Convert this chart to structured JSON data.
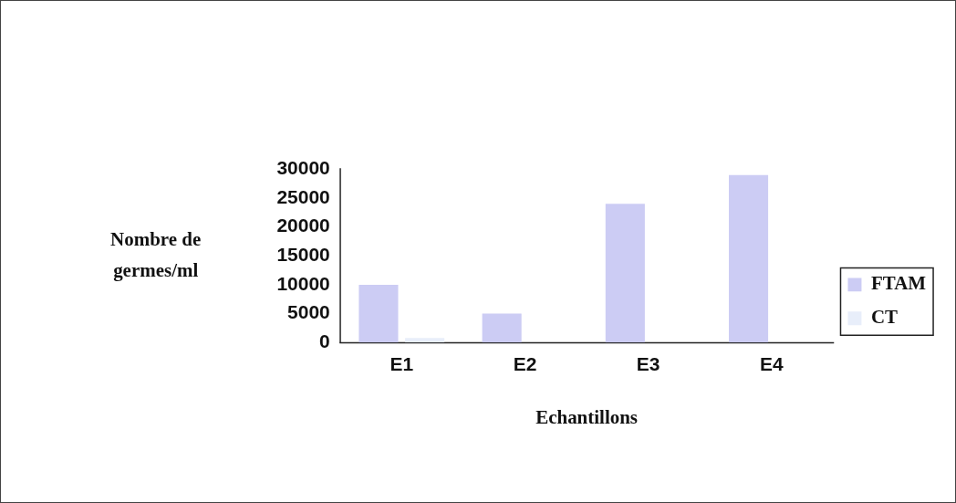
{
  "chart_data": {
    "type": "bar",
    "categories": [
      "E1",
      "E2",
      "E3",
      "E4"
    ],
    "series": [
      {
        "name": "FTAM",
        "color": "#ccccf4",
        "values": [
          10000,
          5000,
          24000,
          29000
        ]
      },
      {
        "name": "CT",
        "color": "#e8eefa",
        "values": [
          800,
          0,
          0,
          0
        ]
      }
    ],
    "xlabel": "Echantillons",
    "ylabel": "Nombre de germes/ml",
    "ylim": [
      0,
      30000
    ],
    "yticks": [
      0,
      5000,
      10000,
      15000,
      20000,
      25000,
      30000
    ],
    "grid": false,
    "legend": "right"
  }
}
